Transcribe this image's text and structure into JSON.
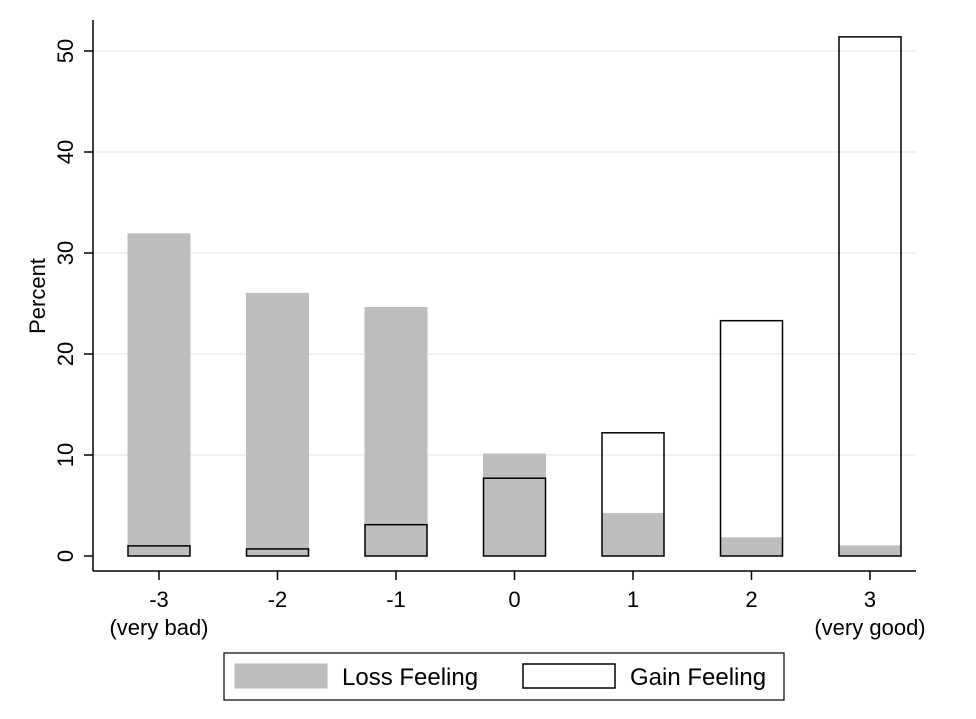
{
  "chart_data": {
    "type": "bar",
    "ylabel": "Percent",
    "xlabel": "",
    "ylim": [
      0,
      52
    ],
    "yticks": [
      0,
      10,
      20,
      30,
      40,
      50
    ],
    "categories": [
      "-3",
      "-2",
      "-1",
      "0",
      "1",
      "2",
      "3"
    ],
    "category_sublabels": [
      "(very bad)",
      "",
      "",
      "",
      "",
      "",
      "(very good)"
    ],
    "series": [
      {
        "name": "Loss Feeling",
        "fill": "#bebebe",
        "stroke": "#bebebe",
        "values": [
          31.9,
          26.0,
          24.6,
          10.1,
          4.2,
          1.8,
          1.0
        ]
      },
      {
        "name": "Gain Feeling",
        "fill": "none",
        "stroke": "#000000",
        "values": [
          1.0,
          0.7,
          3.1,
          7.7,
          12.2,
          23.3,
          51.4
        ]
      }
    ],
    "grid": true,
    "gridlines": "horizontal",
    "grid_color": "#e8eff0",
    "legend": "bottom"
  }
}
